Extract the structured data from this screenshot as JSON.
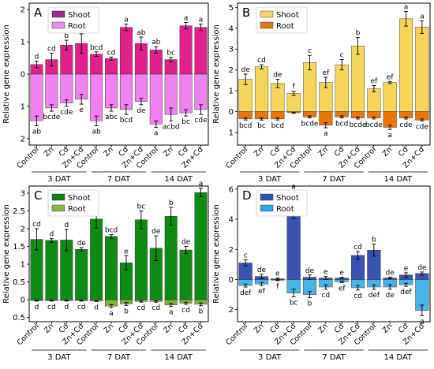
{
  "figure": {
    "ylabel": "Relative gene expression",
    "categories": [
      "Control",
      "Zn",
      "Cd",
      "Zn+Cd",
      "Control",
      "Zn",
      "Cd",
      "Zn+Cd",
      "Control",
      "Zn",
      "Cd",
      "Zn+Cd"
    ],
    "groups": [
      "3 DAT",
      "7 DAT",
      "14 DAT"
    ]
  },
  "chart_data": [
    {
      "type": "bar",
      "panel_label": "A",
      "ylim": [
        -2.2,
        2.2
      ],
      "yticks": [
        -2,
        -1,
        0,
        1,
        2
      ],
      "ytick_labels": [
        "2",
        "1",
        "0",
        "1",
        "2"
      ],
      "legend_position": "top-left",
      "colors": {
        "shoot": "#e0218a",
        "root": "#ee82ee",
        "shoot_legend": "#9c2a86",
        "root_legend": "#e88fe8"
      },
      "series": [
        {
          "name": "Shoot",
          "values": [
            0.3,
            0.45,
            0.9,
            0.95,
            0.62,
            0.48,
            1.45,
            0.95,
            0.75,
            0.45,
            1.5,
            1.45
          ],
          "errors": [
            0.1,
            0.2,
            0.15,
            0.3,
            0.07,
            0.05,
            0.1,
            0.2,
            0.1,
            0.07,
            0.1,
            0.1
          ],
          "letters": [
            "d",
            "cd",
            "b",
            "b",
            "bcd",
            "cd",
            "a",
            "ab",
            "ab",
            "bc",
            "a",
            "a"
          ]
        },
        {
          "name": "Root",
          "values": [
            -1.45,
            -1.05,
            -0.9,
            -0.78,
            -1.45,
            -1.05,
            -1.1,
            -0.85,
            -1.55,
            -1.25,
            -1.2,
            -1.1
          ],
          "errors": [
            0.15,
            0.1,
            0.1,
            0.15,
            0.15,
            0.1,
            0.15,
            0.1,
            0.1,
            0.2,
            0.1,
            0.15
          ],
          "letters": [
            "ab",
            "bcde",
            "cde",
            "e",
            "ab",
            "abc",
            "bcd",
            "de",
            "a",
            "acbd",
            "bc",
            "cde"
          ]
        }
      ]
    },
    {
      "type": "bar",
      "panel_label": "B",
      "ylim": [
        -1.6,
        5.2
      ],
      "yticks": [
        -1,
        0,
        1,
        2,
        3,
        4,
        5
      ],
      "ytick_labels": [
        "1",
        "0",
        "1",
        "2",
        "3",
        "4",
        "5"
      ],
      "legend_position": "top-left",
      "colors": {
        "shoot": "#f7d55a",
        "root": "#e8760a",
        "shoot_legend": "#f3d46b",
        "root_legend": "#e07b12"
      },
      "series": [
        {
          "name": "Shoot",
          "values": [
            1.55,
            2.15,
            1.35,
            0.88,
            2.35,
            1.4,
            2.25,
            3.15,
            1.1,
            1.4,
            4.45,
            4.05
          ],
          "errors": [
            0.25,
            0.1,
            0.2,
            0.1,
            0.35,
            0.25,
            0.25,
            0.4,
            0.15,
            0.05,
            0.35,
            0.3
          ],
          "letters": [
            "de",
            "cd",
            "de",
            "f",
            "c",
            "ef",
            "c",
            "b",
            "ef",
            "ef",
            "a",
            "a"
          ]
        },
        {
          "name": "Root",
          "values": [
            -0.35,
            -0.35,
            -0.35,
            -0.05,
            -0.25,
            -0.65,
            -0.25,
            -0.3,
            -0.3,
            -0.75,
            -0.3,
            -0.4
          ],
          "errors": [
            0.05,
            0.05,
            0.05,
            0.03,
            0.05,
            0.12,
            0.05,
            0.05,
            0.05,
            0.1,
            0.05,
            0.05
          ],
          "letters": [
            "bcd",
            "bc",
            "bcd",
            "",
            "bcde",
            "a",
            "bcd",
            "bcde",
            "bcde",
            "a",
            "cde",
            "cde"
          ]
        }
      ]
    },
    {
      "type": "bar",
      "panel_label": "C",
      "ylim": [
        -0.62,
        3.2
      ],
      "yticks": [
        -0.5,
        0,
        0.5,
        1,
        1.5,
        2,
        2.5,
        3
      ],
      "ytick_labels": [
        "0.5",
        "0",
        "0.5",
        "1",
        "1.5",
        "2",
        "2.5",
        "3"
      ],
      "legend_position": "top-left",
      "colors": {
        "shoot": "#0f8a14",
        "root": "#7fb13a",
        "shoot_legend": "#1a7a1a",
        "root_legend": "#8ab54a"
      },
      "series": [
        {
          "name": "Shoot",
          "values": [
            1.7,
            1.67,
            1.68,
            1.42,
            2.27,
            1.78,
            1.04,
            2.25,
            1.45,
            2.35,
            1.4,
            3.02
          ],
          "errors": [
            0.3,
            0.05,
            0.3,
            0.05,
            0.25,
            0.05,
            0.2,
            0.25,
            0.35,
            0.25,
            0.1,
            0.12
          ],
          "letters": [
            "cd",
            "d",
            "d",
            "de",
            "b",
            "bcd",
            "e",
            "bc",
            "de",
            "b",
            "de",
            "a"
          ]
        },
        {
          "name": "Root",
          "values": [
            -0.03,
            -0.03,
            -0.03,
            -0.03,
            -0.04,
            -0.18,
            -0.12,
            -0.05,
            -0.05,
            -0.15,
            -0.1,
            -0.13
          ],
          "errors": [
            0.01,
            0.01,
            0.01,
            0.01,
            0.01,
            0.04,
            0.04,
            0.02,
            0.02,
            0.04,
            0.03,
            0.04
          ],
          "letters": [
            "d",
            "cd",
            "d",
            "cd",
            "d",
            "a",
            "b",
            "cd",
            "cd",
            "a",
            "cd",
            "b"
          ]
        }
      ]
    },
    {
      "type": "bar",
      "panel_label": "D",
      "ylim": [
        -2.8,
        6.2
      ],
      "yticks": [
        -2,
        0,
        2,
        4,
        6
      ],
      "ytick_labels": [
        "2",
        "0",
        "2",
        "4",
        "6"
      ],
      "legend_position": "top-left",
      "colors": {
        "shoot": "#3a52b0",
        "root": "#45b3e5",
        "shoot_legend": "#3452a8",
        "root_legend": "#3aa3dc"
      },
      "series": [
        {
          "name": "Shoot",
          "values": [
            1.1,
            0.2,
            0.05,
            4.95,
            0.15,
            0.1,
            0.1,
            1.6,
            1.95,
            0.1,
            0.3,
            0.4
          ],
          "errors": [
            0.2,
            0.15,
            0.05,
            0.9,
            0.15,
            0.1,
            0.05,
            0.25,
            0.4,
            0.05,
            0.15,
            0.1
          ],
          "letters": [
            "c",
            "de",
            "e",
            "a",
            "de",
            "e",
            "e",
            "cd",
            "b",
            "de",
            "e",
            "de"
          ]
        },
        {
          "name": "Root",
          "values": [
            -0.4,
            -0.3,
            -0.05,
            -0.9,
            -1.0,
            -0.5,
            -0.15,
            -0.55,
            -0.5,
            -0.5,
            -0.35,
            -2.05
          ],
          "errors": [
            0.1,
            0.1,
            0.03,
            0.25,
            0.2,
            0.15,
            0.05,
            0.15,
            0.15,
            0.15,
            0.1,
            0.35
          ],
          "letters": [
            "def",
            "ef",
            "f",
            "bc",
            "b",
            "cd",
            "ef",
            "cd",
            "def",
            "de",
            "def",
            "a"
          ]
        }
      ]
    }
  ]
}
